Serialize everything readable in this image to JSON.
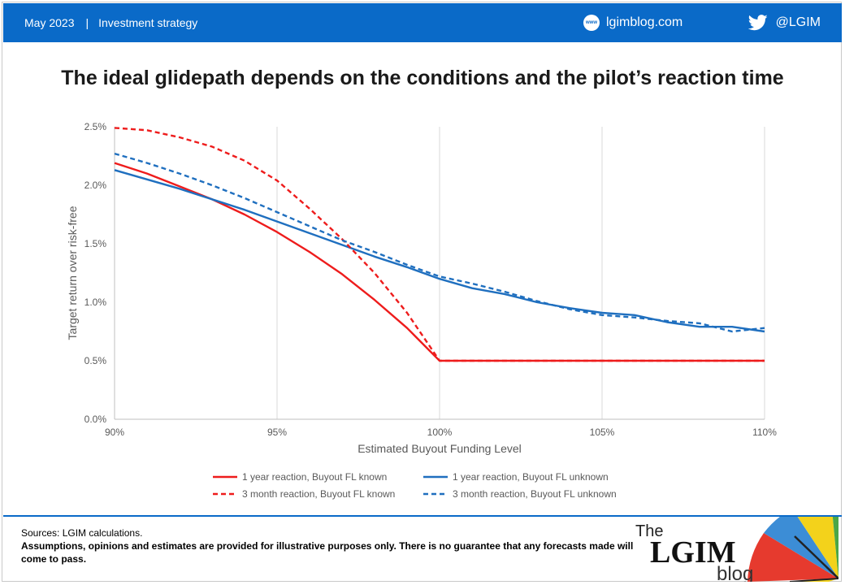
{
  "header": {
    "date": "May 2023",
    "separator": "|",
    "section": "Investment strategy",
    "website": "lgimblog.com",
    "website_icon": "www-icon",
    "website_icon_text": "www",
    "twitter_handle": "@LGIM",
    "twitter_icon": "twitter-icon",
    "bar_color": "#0a6ac8"
  },
  "title": "The ideal glidepath depends on the conditions and the pilot’s reaction time",
  "chart_data": {
    "type": "line",
    "xlabel": "Estimated Buyout Funding Level",
    "ylabel": "Target return over risk-free",
    "xlim": [
      90,
      110
    ],
    "ylim": [
      0.0,
      2.5
    ],
    "xticks": [
      90,
      95,
      100,
      105,
      110
    ],
    "xtick_labels": [
      "90%",
      "95%",
      "100%",
      "105%",
      "110%"
    ],
    "yticks": [
      0.0,
      0.5,
      1.0,
      1.5,
      2.0,
      2.5
    ],
    "ytick_labels": [
      "0.0%",
      "0.5%",
      "1.0%",
      "1.5%",
      "2.0%",
      "2.5%"
    ],
    "grid": "vertical",
    "legend_position": "bottom",
    "series": [
      {
        "name": "1 year reaction, Buyout FL known",
        "color": "#ee1c1c",
        "dash": "solid",
        "x": [
          90,
          91,
          92,
          93,
          94,
          95,
          96,
          97,
          98,
          99,
          100,
          101,
          102,
          103,
          104,
          105,
          106,
          107,
          108,
          109,
          110
        ],
        "y": [
          2.19,
          2.1,
          1.99,
          1.88,
          1.75,
          1.6,
          1.43,
          1.24,
          1.02,
          0.78,
          0.5,
          0.5,
          0.5,
          0.5,
          0.5,
          0.5,
          0.5,
          0.5,
          0.5,
          0.5,
          0.5
        ]
      },
      {
        "name": "1 year reaction, Buyout FL unknown",
        "color": "#1f6fbf",
        "dash": "solid",
        "x": [
          90,
          91,
          92,
          93,
          94,
          95,
          96,
          97,
          98,
          99,
          100,
          101,
          102,
          103,
          104,
          105,
          106,
          107,
          108,
          109,
          110
        ],
        "y": [
          2.13,
          2.05,
          1.97,
          1.88,
          1.79,
          1.69,
          1.59,
          1.49,
          1.39,
          1.3,
          1.2,
          1.12,
          1.07,
          1.0,
          0.95,
          0.91,
          0.89,
          0.83,
          0.79,
          0.79,
          0.75
        ]
      },
      {
        "name": "3 month reaction, Buyout FL known",
        "color": "#ee1c1c",
        "dash": "dashed",
        "x": [
          90,
          91,
          92,
          93,
          94,
          95,
          96,
          97,
          98,
          99,
          100,
          101,
          102,
          103,
          104,
          105,
          106,
          107,
          108,
          109,
          110
        ],
        "y": [
          2.49,
          2.47,
          2.41,
          2.33,
          2.21,
          2.04,
          1.8,
          1.54,
          1.25,
          0.91,
          0.5,
          0.5,
          0.5,
          0.5,
          0.5,
          0.5,
          0.5,
          0.5,
          0.5,
          0.5,
          0.5
        ]
      },
      {
        "name": "3 month reaction, Buyout FL unknown",
        "color": "#1f6fbf",
        "dash": "dashed",
        "x": [
          90,
          91,
          92,
          93,
          94,
          95,
          96,
          97,
          98,
          99,
          100,
          101,
          102,
          103,
          104,
          105,
          106,
          107,
          108,
          109,
          110
        ],
        "y": [
          2.27,
          2.19,
          2.1,
          2.0,
          1.89,
          1.77,
          1.65,
          1.53,
          1.43,
          1.32,
          1.22,
          1.16,
          1.09,
          1.01,
          0.94,
          0.89,
          0.87,
          0.84,
          0.82,
          0.75,
          0.78
        ]
      }
    ]
  },
  "footer": {
    "sources": "Sources: LGIM calculations.",
    "disclaimer": "Assumptions,  opinions and estimates are provided for illustrative purposes only. There is no guarantee that any forecasts  made will come to pass."
  },
  "logo": {
    "line1": "The",
    "line2": "LGIM",
    "line3": "blog"
  }
}
